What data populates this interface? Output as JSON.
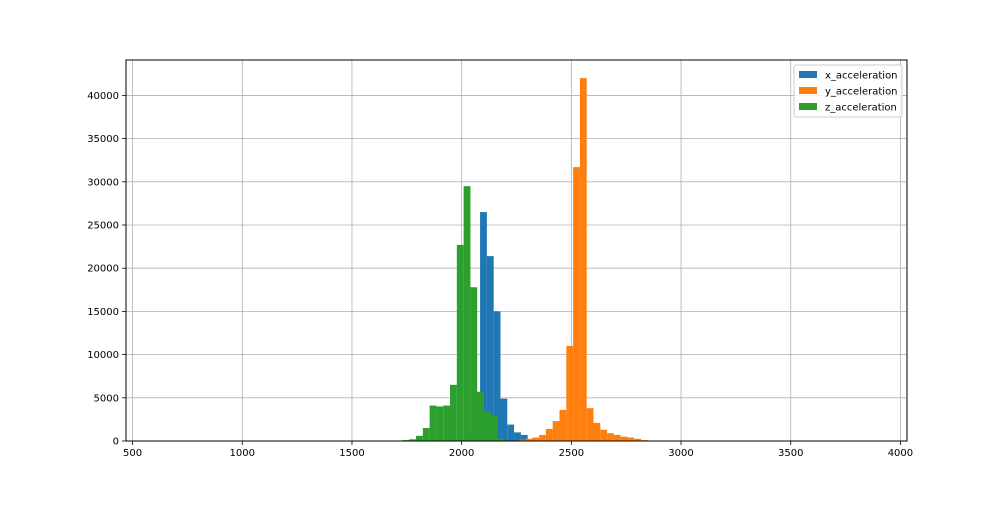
{
  "chart_data": {
    "type": "histogram",
    "title": "",
    "xlabel": "",
    "ylabel": "",
    "xlim": [
      470,
      4030
    ],
    "ylim": [
      0,
      44100
    ],
    "x_ticks": [
      500,
      1000,
      1500,
      2000,
      2500,
      3000,
      3500,
      4000
    ],
    "y_ticks": [
      0,
      5000,
      10000,
      15000,
      20000,
      25000,
      30000,
      35000,
      40000
    ],
    "grid": true,
    "legend_position": "top-right",
    "bin_width": 31,
    "series": [
      {
        "name": "x_acceleration",
        "color": "#1f77b4",
        "bins": [
          [
            1991,
            200
          ],
          [
            2022,
            900
          ],
          [
            2053,
            5600
          ],
          [
            2084,
            26500
          ],
          [
            2115,
            21400
          ],
          [
            2146,
            15000
          ],
          [
            2177,
            4900
          ],
          [
            2208,
            1900
          ],
          [
            2239,
            1000
          ],
          [
            2270,
            700
          ],
          [
            2301,
            200
          ]
        ]
      },
      {
        "name": "y_acceleration",
        "color": "#ff7f0e",
        "bins": [
          [
            2260,
            150
          ],
          [
            2291,
            250
          ],
          [
            2322,
            400
          ],
          [
            2353,
            700
          ],
          [
            2384,
            1400
          ],
          [
            2415,
            2300
          ],
          [
            2446,
            3600
          ],
          [
            2477,
            11000
          ],
          [
            2508,
            31700
          ],
          [
            2539,
            42000
          ],
          [
            2570,
            3800
          ],
          [
            2601,
            2100
          ],
          [
            2632,
            1300
          ],
          [
            2663,
            900
          ],
          [
            2694,
            700
          ],
          [
            2725,
            500
          ],
          [
            2756,
            400
          ],
          [
            2787,
            250
          ],
          [
            2818,
            100
          ]
        ]
      },
      {
        "name": "z_acceleration",
        "color": "#2ca02c",
        "bins": [
          [
            1730,
            100
          ],
          [
            1761,
            200
          ],
          [
            1792,
            600
          ],
          [
            1823,
            1500
          ],
          [
            1854,
            4100
          ],
          [
            1885,
            4000
          ],
          [
            1916,
            4100
          ],
          [
            1947,
            6500
          ],
          [
            1978,
            22700
          ],
          [
            2009,
            29500
          ],
          [
            2040,
            17800
          ],
          [
            2071,
            5700
          ],
          [
            2102,
            3400
          ],
          [
            2133,
            2900
          ],
          [
            2164,
            300
          ]
        ]
      }
    ]
  }
}
